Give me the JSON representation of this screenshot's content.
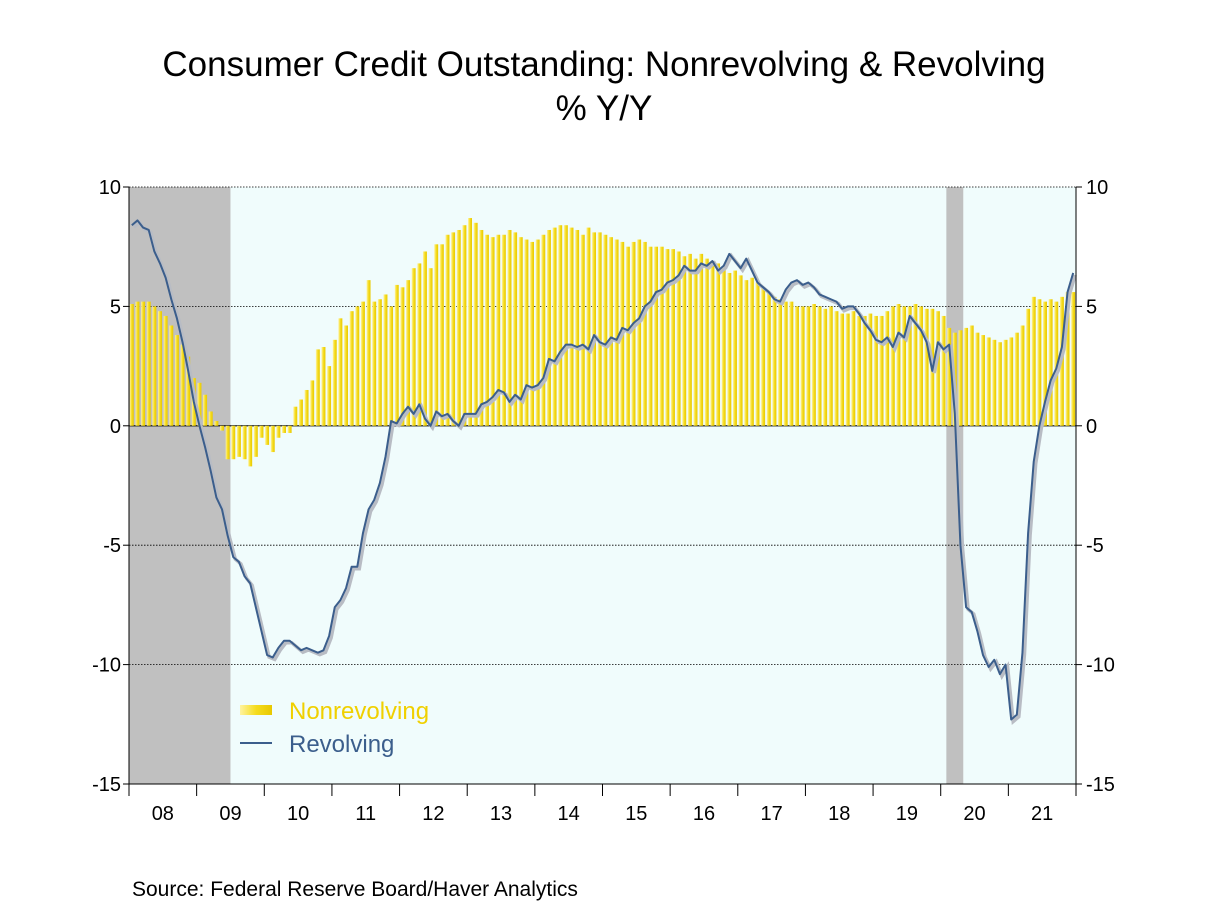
{
  "chart_data": {
    "type": "bar-line",
    "title": "Consumer Credit Outstanding: Nonrevolving & Revolving",
    "subtitle": "% Y/Y",
    "source": "Source:  Federal Reserve Board/Haver Analytics",
    "categories": [
      null,
      null,
      null,
      null,
      null,
      null,
      "08",
      null,
      null,
      null,
      null,
      null,
      null,
      null,
      null,
      null,
      null,
      null,
      "09",
      null,
      null,
      null,
      null,
      null,
      null,
      null,
      null,
      null,
      null,
      null,
      "10",
      null,
      null,
      null,
      null,
      null,
      null,
      null,
      null,
      null,
      null,
      null,
      "11",
      null,
      null,
      null,
      null,
      null,
      null,
      null,
      null,
      null,
      null,
      null,
      "12",
      null,
      null,
      null,
      null,
      null,
      null,
      null,
      null,
      null,
      null,
      null,
      "13",
      null,
      null,
      null,
      null,
      null,
      null,
      null,
      null,
      null,
      null,
      null,
      "14",
      null,
      null,
      null,
      null,
      null,
      null,
      null,
      null,
      null,
      null,
      null,
      "15",
      null,
      null,
      null,
      null,
      null,
      null,
      null,
      null,
      null,
      null,
      null,
      "16",
      null,
      null,
      null,
      null,
      null,
      null,
      null,
      null,
      null,
      null,
      null,
      "17",
      null,
      null,
      null,
      null,
      null,
      null,
      null,
      null,
      null,
      null,
      null,
      "18",
      null,
      null,
      null,
      null,
      null,
      null,
      null,
      null,
      null,
      null,
      null,
      "19",
      null,
      null,
      null,
      null,
      null,
      null,
      null,
      null,
      null,
      null,
      null,
      "20",
      null,
      null,
      null,
      null,
      null,
      null,
      null,
      null,
      null,
      null,
      null,
      "21",
      null,
      null,
      null,
      null,
      null
    ],
    "shading": [
      [
        0,
        18
      ],
      [
        145,
        148
      ]
    ],
    "series": [
      {
        "name": "Nonrevolving",
        "color": "#f5dc1e",
        "kind": "bar",
        "values": [
          5.1,
          5.2,
          5.2,
          5.2,
          5.0,
          4.8,
          4.6,
          4.2,
          3.8,
          3.4,
          2.9,
          2.0,
          1.8,
          1.3,
          0.6,
          0.2,
          -0.2,
          -1.4,
          -1.4,
          -1.3,
          -1.4,
          -1.7,
          -1.3,
          -0.5,
          -0.8,
          -1.1,
          -0.5,
          -0.3,
          -0.3,
          0.8,
          1.1,
          1.5,
          1.9,
          3.2,
          3.3,
          2.5,
          3.6,
          4.5,
          4.2,
          4.8,
          5.0,
          5.2,
          6.1,
          5.2,
          5.3,
          5.5,
          5.0,
          5.9,
          5.8,
          6.1,
          6.6,
          6.8,
          7.3,
          6.6,
          7.6,
          7.6,
          8.0,
          8.1,
          8.2,
          8.4,
          8.7,
          8.5,
          8.2,
          8.0,
          7.9,
          8.0,
          8.0,
          8.2,
          8.1,
          7.9,
          7.8,
          7.7,
          7.8,
          8.0,
          8.2,
          8.3,
          8.4,
          8.4,
          8.3,
          8.2,
          8.0,
          8.3,
          8.1,
          8.1,
          8.0,
          7.9,
          7.8,
          7.7,
          7.5,
          7.7,
          7.8,
          7.7,
          7.5,
          7.5,
          7.5,
          7.4,
          7.4,
          7.3,
          7.1,
          7.2,
          7.0,
          7.2,
          7.0,
          6.9,
          6.8,
          6.6,
          6.4,
          6.5,
          6.3,
          6.1,
          6.2,
          6.0,
          5.8,
          5.6,
          5.4,
          5.3,
          5.2,
          5.2,
          5.0,
          5.0,
          5.0,
          5.1,
          5.0,
          4.9,
          5.0,
          4.8,
          4.7,
          4.7,
          4.8,
          4.6,
          4.6,
          4.7,
          4.6,
          4.6,
          4.8,
          5.0,
          5.1,
          5.0,
          5.0,
          5.1,
          5.0,
          4.9,
          4.9,
          4.8,
          4.6,
          4.1,
          3.9,
          4.0,
          4.1,
          4.2,
          3.9,
          3.8,
          3.7,
          3.6,
          3.5,
          3.6,
          3.7,
          3.9,
          4.2,
          4.9,
          5.4,
          5.3,
          5.2,
          5.3,
          5.2,
          5.4,
          5.6,
          5.6
        ]
      },
      {
        "name": "Revolving",
        "color": "#3b5e8c",
        "kind": "line",
        "values": [
          8.4,
          8.6,
          8.3,
          8.2,
          7.3,
          6.8,
          6.2,
          5.3,
          4.5,
          3.5,
          2.3,
          1.0,
          0.0,
          -0.9,
          -1.9,
          -3.0,
          -3.5,
          -4.6,
          -5.5,
          -5.7,
          -6.3,
          -6.6,
          -7.6,
          -8.6,
          -9.6,
          -9.7,
          -9.3,
          -9.0,
          -9.0,
          -9.2,
          -9.4,
          -9.3,
          -9.4,
          -9.5,
          -9.4,
          -8.8,
          -7.6,
          -7.3,
          -6.8,
          -5.9,
          -5.9,
          -4.5,
          -3.5,
          -3.1,
          -2.4,
          -1.3,
          0.2,
          0.1,
          0.5,
          0.8,
          0.5,
          0.9,
          0.3,
          0.0,
          0.6,
          0.4,
          0.5,
          0.2,
          0.0,
          0.5,
          0.5,
          0.5,
          0.9,
          1.0,
          1.2,
          1.5,
          1.4,
          1.0,
          1.3,
          1.1,
          1.7,
          1.6,
          1.7,
          2.0,
          2.8,
          2.7,
          3.1,
          3.4,
          3.4,
          3.3,
          3.4,
          3.2,
          3.8,
          3.5,
          3.4,
          3.7,
          3.6,
          4.1,
          4.0,
          4.3,
          4.5,
          5.0,
          5.2,
          5.6,
          5.7,
          6.0,
          6.1,
          6.3,
          6.7,
          6.5,
          6.5,
          6.8,
          6.7,
          6.9,
          6.5,
          6.7,
          7.2,
          6.9,
          6.6,
          7.0,
          6.5,
          6.0,
          5.8,
          5.6,
          5.3,
          5.2,
          5.7,
          6.0,
          6.1,
          5.9,
          6.0,
          5.8,
          5.5,
          5.4,
          5.3,
          5.2,
          4.9,
          5.0,
          5.0,
          4.7,
          4.3,
          4.0,
          3.6,
          3.5,
          3.7,
          3.3,
          3.9,
          3.7,
          4.6,
          4.3,
          4.0,
          3.5,
          2.3,
          3.5,
          3.2,
          3.4,
          0.5,
          -5.0,
          -7.6,
          -7.8,
          -8.6,
          -9.6,
          -10.1,
          -9.8,
          -10.4,
          -10.0,
          -12.3,
          -12.1,
          -9.5,
          -4.5,
          -1.5,
          0.0,
          1.0,
          1.9,
          2.4,
          3.3,
          5.6,
          6.4
        ]
      }
    ],
    "ylim": [
      -15,
      10
    ],
    "yticks": [
      -15,
      -10,
      -5,
      0,
      5,
      10
    ],
    "grid": true,
    "legend": "lower-left"
  }
}
